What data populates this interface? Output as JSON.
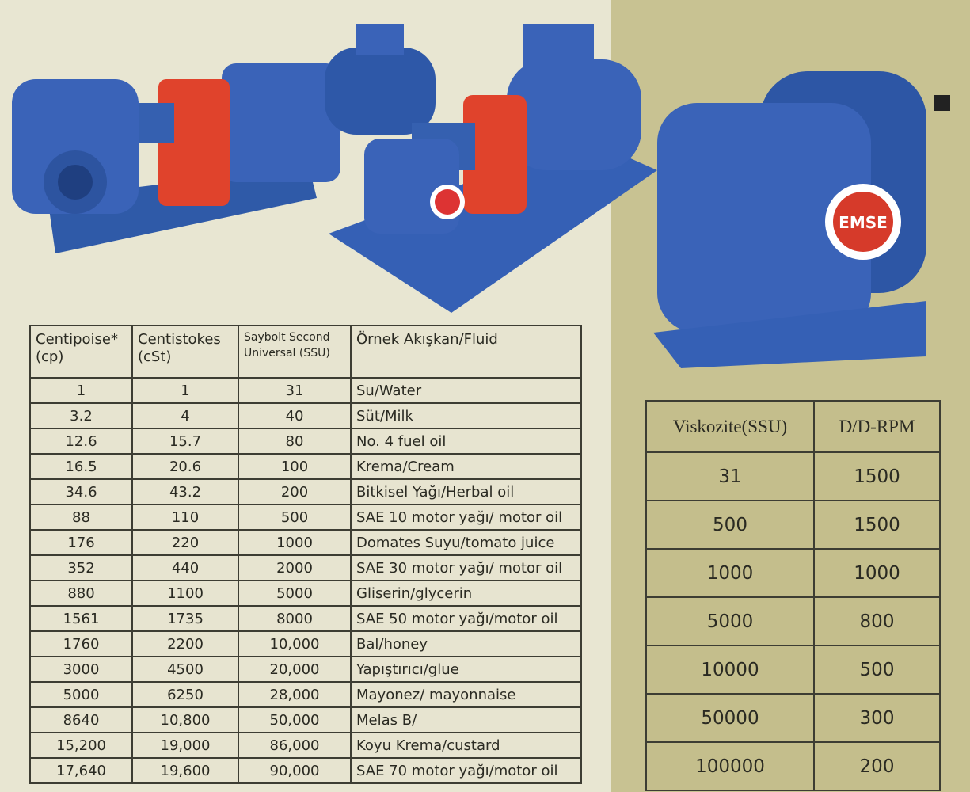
{
  "colors": {
    "page": "#e8e6d2",
    "panel": "#c8c292",
    "pump_blue": "#3a63b8",
    "guard_red": "#e0432c"
  },
  "logo_text": "EMSE",
  "viscosity_table": {
    "headers": [
      "Centipoise* (cp)",
      "Centistokes (cSt)",
      "Saybolt Second Universal (SSU)",
      "Örnek Akışkan/Fluid"
    ],
    "header_lines": [
      [
        "Centipoise*",
        "(cp)"
      ],
      [
        "Centistokes",
        "(cSt)"
      ],
      [
        "Saybolt Second",
        "Universal (SSU)"
      ],
      [
        "Örnek Akışkan/Fluid",
        ""
      ]
    ],
    "rows": [
      [
        "1",
        "1",
        "31",
        "Su/Water"
      ],
      [
        "3.2",
        "4",
        "40",
        "Süt/Milk"
      ],
      [
        "12.6",
        "15.7",
        "80",
        "No. 4 fuel oil"
      ],
      [
        "16.5",
        "20.6",
        "100",
        "Krema/Cream"
      ],
      [
        "34.6",
        "43.2",
        "200",
        "Bitkisel Yağı/Herbal oil"
      ],
      [
        "88",
        "110",
        "500",
        "SAE 10 motor yağı/ motor oil"
      ],
      [
        "176",
        "220",
        "1000",
        "Domates Suyu/tomato juice"
      ],
      [
        "352",
        "440",
        "2000",
        "SAE 30 motor yağı/ motor oil"
      ],
      [
        "880",
        "1100",
        "5000",
        "Gliserin/glycerin"
      ],
      [
        "1561",
        "1735",
        "8000",
        "SAE 50 motor yağı/motor oil"
      ],
      [
        "1760",
        "2200",
        "10,000",
        "Bal/honey"
      ],
      [
        "3000",
        "4500",
        "20,000",
        "Yapıştırıcı/glue"
      ],
      [
        "5000",
        "6250",
        "28,000",
        "Mayonez/ mayonnaise"
      ],
      [
        "8640",
        "10,800",
        "50,000",
        "Melas B/"
      ],
      [
        "15,200",
        "19,000",
        "86,000",
        "Koyu Krema/custard"
      ],
      [
        "17,640",
        "19,600",
        "90,000",
        "SAE 70 motor yağı/motor oil"
      ]
    ]
  },
  "rpm_table": {
    "headers": [
      "Viskozite(SSU)",
      "D/D-RPM"
    ],
    "rows": [
      [
        "31",
        "1500"
      ],
      [
        "500",
        "1500"
      ],
      [
        "1000",
        "1000"
      ],
      [
        "5000",
        "800"
      ],
      [
        "10000",
        "500"
      ],
      [
        "50000",
        "300"
      ],
      [
        "100000",
        "200"
      ]
    ]
  }
}
